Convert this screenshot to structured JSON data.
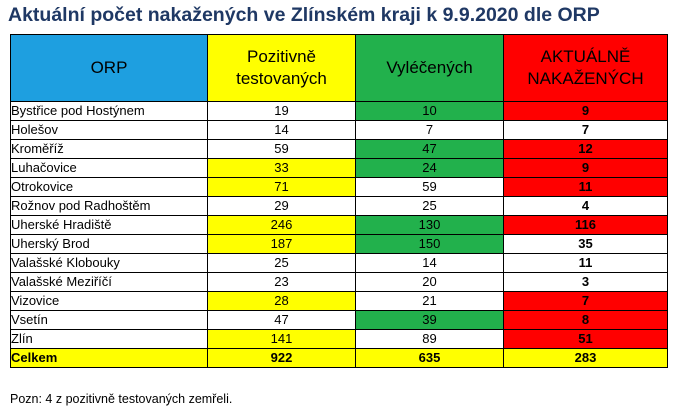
{
  "title": "Aktuální počet nakažených ve Zlínském kraji k 9.9.2020 dle ORP",
  "headers": {
    "orp": "ORP",
    "pos_line1": "Pozitivně",
    "pos_line2": "testovaných",
    "vyl": "Vyléčených",
    "akt_line1": "AKTUÁLNĚ",
    "akt_line2": "NAKAŽENÝCH"
  },
  "colors": {
    "header_orp": "#1e9fe0",
    "yellow": "#ffff00",
    "green": "#22b14c",
    "red": "#ff0000",
    "title": "#1f3864"
  },
  "rows": [
    {
      "name": "Bystřice pod Hostýnem",
      "pos": "19",
      "vyl": "10",
      "akt": "9",
      "pos_hl": "",
      "vyl_hl": "green",
      "akt_hl": "red"
    },
    {
      "name": "Holešov",
      "pos": "14",
      "vyl": "7",
      "akt": "7",
      "pos_hl": "",
      "vyl_hl": "",
      "akt_hl": ""
    },
    {
      "name": "Kroměříž",
      "pos": "59",
      "vyl": "47",
      "akt": "12",
      "pos_hl": "",
      "vyl_hl": "green",
      "akt_hl": "red"
    },
    {
      "name": "Luhačovice",
      "pos": "33",
      "vyl": "24",
      "akt": "9",
      "pos_hl": "yellow",
      "vyl_hl": "green",
      "akt_hl": "red"
    },
    {
      "name": "Otrokovice",
      "pos": "71",
      "vyl": "59",
      "akt": "11",
      "pos_hl": "yellow",
      "vyl_hl": "",
      "akt_hl": "red"
    },
    {
      "name": "Rožnov pod Radhoštěm",
      "pos": "29",
      "vyl": "25",
      "akt": "4",
      "pos_hl": "",
      "vyl_hl": "",
      "akt_hl": ""
    },
    {
      "name": "Uherské Hradiště",
      "pos": "246",
      "vyl": "130",
      "akt": "116",
      "pos_hl": "yellow",
      "vyl_hl": "green",
      "akt_hl": "red"
    },
    {
      "name": "Uherský Brod",
      "pos": "187",
      "vyl": "150",
      "akt": "35",
      "pos_hl": "yellow",
      "vyl_hl": "green",
      "akt_hl": ""
    },
    {
      "name": "Valašské Klobouky",
      "pos": "25",
      "vyl": "14",
      "akt": "11",
      "pos_hl": "",
      "vyl_hl": "",
      "akt_hl": ""
    },
    {
      "name": "Valašské Meziříčí",
      "pos": "23",
      "vyl": "20",
      "akt": "3",
      "pos_hl": "",
      "vyl_hl": "",
      "akt_hl": ""
    },
    {
      "name": "Vizovice",
      "pos": "28",
      "vyl": "21",
      "akt": "7",
      "pos_hl": "yellow",
      "vyl_hl": "",
      "akt_hl": "red"
    },
    {
      "name": "Vsetín",
      "pos": "47",
      "vyl": "39",
      "akt": "8",
      "pos_hl": "",
      "vyl_hl": "green",
      "akt_hl": "red"
    },
    {
      "name": "Zlín",
      "pos": "141",
      "vyl": "89",
      "akt": "51",
      "pos_hl": "yellow",
      "vyl_hl": "",
      "akt_hl": "red"
    }
  ],
  "total": {
    "name": "Celkem",
    "pos": "922",
    "vyl": "635",
    "akt": "283"
  },
  "note": "Pozn: 4 z pozitivně testovaných zemřeli."
}
